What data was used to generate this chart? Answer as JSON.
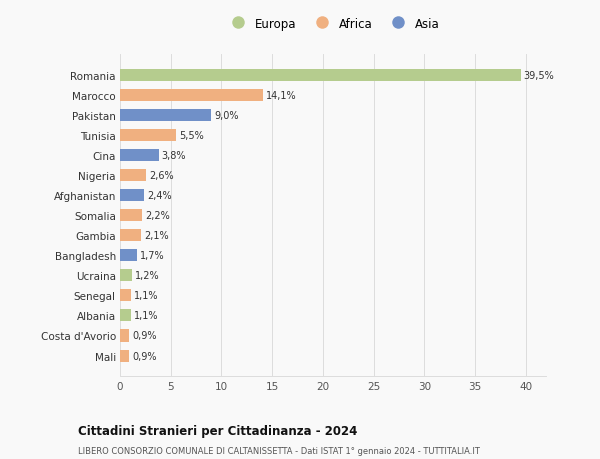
{
  "countries": [
    "Romania",
    "Marocco",
    "Pakistan",
    "Tunisia",
    "Cina",
    "Nigeria",
    "Afghanistan",
    "Somalia",
    "Gambia",
    "Bangladesh",
    "Ucraina",
    "Senegal",
    "Albania",
    "Costa d'Avorio",
    "Mali"
  ],
  "values": [
    39.5,
    14.1,
    9.0,
    5.5,
    3.8,
    2.6,
    2.4,
    2.2,
    2.1,
    1.7,
    1.2,
    1.1,
    1.1,
    0.9,
    0.9
  ],
  "labels": [
    "39,5%",
    "14,1%",
    "9,0%",
    "5,5%",
    "3,8%",
    "2,6%",
    "2,4%",
    "2,2%",
    "2,1%",
    "1,7%",
    "1,2%",
    "1,1%",
    "1,1%",
    "0,9%",
    "0,9%"
  ],
  "continents": [
    "Europa",
    "Africa",
    "Asia",
    "Africa",
    "Asia",
    "Africa",
    "Asia",
    "Africa",
    "Africa",
    "Asia",
    "Europa",
    "Africa",
    "Europa",
    "Africa",
    "Africa"
  ],
  "colors": {
    "Europa": "#b5cc8e",
    "Africa": "#f0b080",
    "Asia": "#7090c8"
  },
  "title": "Cittadini Stranieri per Cittadinanza - 2024",
  "subtitle": "LIBERO CONSORZIO COMUNALE DI CALTANISSETTA - Dati ISTAT 1° gennaio 2024 - TUTTITALIA.IT",
  "xlim": [
    0,
    42
  ],
  "xticks": [
    0,
    5,
    10,
    15,
    20,
    25,
    30,
    35,
    40
  ],
  "background_color": "#f9f9f9",
  "grid_color": "#dddddd"
}
